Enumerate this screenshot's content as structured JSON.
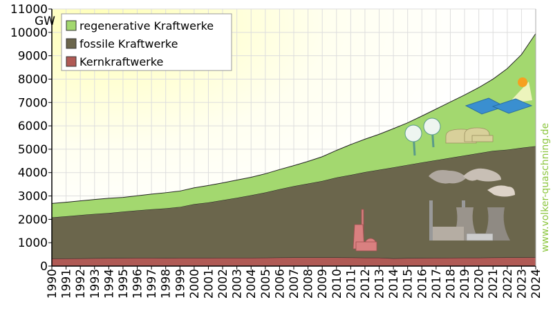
{
  "chart_data": {
    "type": "area",
    "stacked": true,
    "unit_label": "GW",
    "x": [
      1990,
      1991,
      1992,
      1993,
      1994,
      1995,
      1996,
      1997,
      1998,
      1999,
      2000,
      2001,
      2002,
      2003,
      2004,
      2005,
      2006,
      2007,
      2008,
      2009,
      2010,
      2011,
      2012,
      2013,
      2014,
      2015,
      2016,
      2017,
      2018,
      2019,
      2020,
      2021,
      2022,
      2023,
      2024
    ],
    "ylim": [
      0,
      11000
    ],
    "yticks": [
      0,
      1000,
      2000,
      3000,
      4000,
      5000,
      6000,
      7000,
      8000,
      9000,
      10000,
      11000
    ],
    "grid": true,
    "legend_placement": "top-left",
    "series": [
      {
        "name": "Kernkraftwerke",
        "color": "#b05a55",
        "values": [
          320,
          325,
          330,
          335,
          340,
          345,
          350,
          350,
          345,
          350,
          350,
          350,
          355,
          355,
          355,
          360,
          365,
          370,
          370,
          370,
          370,
          365,
          360,
          360,
          330,
          340,
          345,
          350,
          355,
          360,
          360,
          365,
          370,
          370,
          375
        ]
      },
      {
        "name": "fossile Kraftwerke",
        "color": "#6b664c",
        "values": [
          1760,
          1805,
          1850,
          1895,
          1930,
          1985,
          2030,
          2080,
          2125,
          2180,
          2300,
          2370,
          2465,
          2565,
          2675,
          2790,
          2925,
          3050,
          3160,
          3270,
          3420,
          3535,
          3660,
          3760,
          3890,
          3990,
          4085,
          4180,
          4275,
          4370,
          4470,
          4565,
          4610,
          4690,
          4755
        ]
      },
      {
        "name": "regenerative Kraftwerke",
        "color": "#a3d86f",
        "values": [
          600,
          600,
          610,
          620,
          630,
          610,
          630,
          650,
          670,
          680,
          700,
          730,
          740,
          760,
          770,
          800,
          840,
          880,
          950,
          1040,
          1160,
          1300,
          1410,
          1520,
          1660,
          1800,
          1990,
          2190,
          2390,
          2590,
          2810,
          3070,
          3470,
          3990,
          4820
        ]
      }
    ],
    "legend_order": [
      "regenerative Kraftwerke",
      "fossile Kraftwerke",
      "Kernkraftwerke"
    ]
  },
  "watermark": "www.volker-quaschning.de",
  "illustrations": [
    "solar-panels-icon",
    "wind-turbines-icon",
    "biogas-plant-icon",
    "coal-power-plant-icon",
    "nuclear-power-plant-icon"
  ]
}
